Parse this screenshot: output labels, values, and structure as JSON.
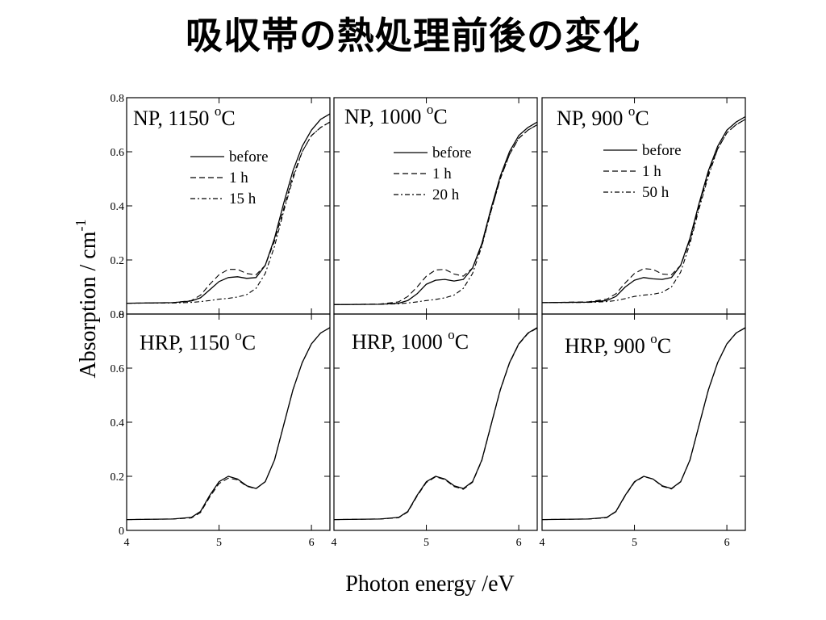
{
  "slide": {
    "title": "吸収帯の熱処理前後の変化"
  },
  "chart_data": {
    "type": "line",
    "xlabel": "Photon energy /eV",
    "ylabel": "Absorption / cm",
    "ylabel_sup": "-1",
    "xlim": [
      4,
      6.2
    ],
    "ylim": [
      0,
      0.8
    ],
    "xticks": [
      "4",
      "5",
      "6"
    ],
    "yticks": [
      "0",
      "0.2",
      "0.4",
      "0.6",
      "0.8"
    ],
    "grid": false,
    "panels": [
      {
        "title": "NP,  1150",
        "title_sup": "o",
        "title_unit": "C",
        "series": [
          {
            "name": "before",
            "style": "solid",
            "x": [
              4.0,
              4.5,
              4.7,
              4.8,
              4.9,
              5.0,
              5.1,
              5.2,
              5.3,
              5.4,
              5.5,
              5.6,
              5.7,
              5.8,
              5.9,
              6.0,
              6.1,
              6.2
            ],
            "y": [
              0.04,
              0.042,
              0.048,
              0.06,
              0.09,
              0.12,
              0.135,
              0.138,
              0.132,
              0.135,
              0.18,
              0.28,
              0.41,
              0.53,
              0.62,
              0.68,
              0.72,
              0.74
            ]
          },
          {
            "name": "1  h",
            "style": "dashed",
            "x": [
              4.0,
              4.5,
              4.7,
              4.8,
              4.9,
              5.0,
              5.1,
              5.2,
              5.3,
              5.4,
              5.5,
              5.6,
              5.7,
              5.8,
              5.9,
              6.0,
              6.1,
              6.2
            ],
            "y": [
              0.04,
              0.042,
              0.05,
              0.07,
              0.11,
              0.145,
              0.165,
              0.165,
              0.15,
              0.145,
              0.18,
              0.27,
              0.39,
              0.51,
              0.6,
              0.66,
              0.69,
              0.71
            ]
          },
          {
            "name": "15 h",
            "style": "dashdot",
            "x": [
              4.0,
              4.5,
              4.7,
              4.8,
              4.9,
              5.0,
              5.1,
              5.2,
              5.3,
              5.4,
              5.5,
              5.6,
              5.7,
              5.8,
              5.9,
              6.0,
              6.1,
              6.2
            ],
            "y": [
              0.04,
              0.041,
              0.043,
              0.046,
              0.05,
              0.055,
              0.058,
              0.063,
              0.072,
              0.095,
              0.15,
              0.25,
              0.38,
              0.5,
              0.6,
              0.66,
              0.69,
              0.71
            ]
          }
        ]
      },
      {
        "title": "NP,  1000",
        "title_sup": "o",
        "title_unit": "C",
        "series": [
          {
            "name": "before",
            "style": "solid",
            "x": [
              4.0,
              4.5,
              4.7,
              4.8,
              4.9,
              5.0,
              5.1,
              5.2,
              5.3,
              5.4,
              5.5,
              5.6,
              5.7,
              5.8,
              5.9,
              6.0,
              6.1,
              6.2
            ],
            "y": [
              0.035,
              0.036,
              0.04,
              0.05,
              0.075,
              0.11,
              0.125,
              0.128,
              0.122,
              0.128,
              0.17,
              0.26,
              0.39,
              0.51,
              0.6,
              0.66,
              0.69,
              0.71
            ]
          },
          {
            "name": "1  h",
            "style": "dashed",
            "x": [
              4.0,
              4.5,
              4.7,
              4.8,
              4.9,
              5.0,
              5.1,
              5.2,
              5.3,
              5.4,
              5.5,
              5.6,
              5.7,
              5.8,
              5.9,
              6.0,
              6.1,
              6.2
            ],
            "y": [
              0.035,
              0.037,
              0.045,
              0.065,
              0.1,
              0.14,
              0.163,
              0.165,
              0.148,
              0.14,
              0.17,
              0.255,
              0.38,
              0.5,
              0.59,
              0.65,
              0.68,
              0.7
            ]
          },
          {
            "name": "20 h",
            "style": "dashdot",
            "x": [
              4.0,
              4.5,
              4.7,
              4.8,
              4.9,
              5.0,
              5.1,
              5.2,
              5.3,
              5.4,
              5.5,
              5.6,
              5.7,
              5.8,
              5.9,
              6.0,
              6.1,
              6.2
            ],
            "y": [
              0.035,
              0.036,
              0.038,
              0.041,
              0.045,
              0.05,
              0.054,
              0.06,
              0.07,
              0.095,
              0.15,
              0.25,
              0.38,
              0.5,
              0.59,
              0.65,
              0.68,
              0.7
            ]
          }
        ]
      },
      {
        "title": "NP,  900",
        "title_sup": "o",
        "title_unit": "C",
        "series": [
          {
            "name": "before",
            "style": "solid",
            "x": [
              4.0,
              4.5,
              4.7,
              4.8,
              4.9,
              5.0,
              5.1,
              5.2,
              5.3,
              5.4,
              5.5,
              5.6,
              5.7,
              5.8,
              5.9,
              6.0,
              6.1,
              6.2
            ],
            "y": [
              0.042,
              0.044,
              0.05,
              0.065,
              0.1,
              0.125,
              0.135,
              0.13,
              0.128,
              0.135,
              0.18,
              0.28,
              0.41,
              0.53,
              0.62,
              0.68,
              0.71,
              0.73
            ]
          },
          {
            "name": "1  h",
            "style": "dashed",
            "x": [
              4.0,
              4.5,
              4.7,
              4.8,
              4.9,
              5.0,
              5.1,
              5.2,
              5.3,
              5.4,
              5.5,
              5.6,
              5.7,
              5.8,
              5.9,
              6.0,
              6.1,
              6.2
            ],
            "y": [
              0.042,
              0.045,
              0.055,
              0.075,
              0.115,
              0.15,
              0.168,
              0.165,
              0.148,
              0.145,
              0.18,
              0.27,
              0.4,
              0.52,
              0.61,
              0.67,
              0.7,
              0.72
            ]
          },
          {
            "name": "50 h",
            "style": "dashdot",
            "x": [
              4.0,
              4.5,
              4.7,
              4.8,
              4.9,
              5.0,
              5.1,
              5.2,
              5.3,
              5.4,
              5.5,
              5.6,
              5.7,
              5.8,
              5.9,
              6.0,
              6.1,
              6.2
            ],
            "y": [
              0.042,
              0.043,
              0.046,
              0.05,
              0.057,
              0.065,
              0.07,
              0.073,
              0.08,
              0.1,
              0.155,
              0.26,
              0.39,
              0.51,
              0.61,
              0.67,
              0.7,
              0.72
            ]
          }
        ]
      },
      {
        "title": "HRP, 1150",
        "title_sup": "o",
        "title_unit": "C",
        "series": [
          {
            "style": "solid",
            "x": [
              4.0,
              4.5,
              4.7,
              4.8,
              4.9,
              5.0,
              5.1,
              5.2,
              5.3,
              5.4,
              5.5,
              5.6,
              5.7,
              5.8,
              5.9,
              6.0,
              6.1,
              6.2
            ],
            "y": [
              0.04,
              0.042,
              0.048,
              0.07,
              0.13,
              0.18,
              0.2,
              0.19,
              0.165,
              0.155,
              0.18,
              0.26,
              0.39,
              0.52,
              0.62,
              0.69,
              0.73,
              0.75
            ]
          },
          {
            "style": "dashed",
            "x": [
              4.0,
              4.5,
              4.7,
              4.8,
              4.9,
              5.0,
              5.1,
              5.2,
              5.3,
              5.4,
              5.5,
              5.6,
              5.7,
              5.8,
              5.9,
              6.0,
              6.1,
              6.2
            ],
            "y": [
              0.04,
              0.042,
              0.046,
              0.066,
              0.124,
              0.173,
              0.193,
              0.187,
              0.163,
              0.154,
              0.18,
              0.26,
              0.39,
              0.52,
              0.62,
              0.69,
              0.73,
              0.75
            ]
          }
        ]
      },
      {
        "title": "HRP, 1000",
        "title_sup": "o",
        "title_unit": "C",
        "series": [
          {
            "style": "solid",
            "x": [
              4.0,
              4.5,
              4.7,
              4.8,
              4.9,
              5.0,
              5.1,
              5.2,
              5.3,
              5.4,
              5.5,
              5.6,
              5.7,
              5.8,
              5.9,
              6.0,
              6.1,
              6.2
            ],
            "y": [
              0.04,
              0.042,
              0.048,
              0.07,
              0.13,
              0.18,
              0.2,
              0.19,
              0.165,
              0.155,
              0.18,
              0.26,
              0.39,
              0.52,
              0.62,
              0.69,
              0.73,
              0.75
            ]
          },
          {
            "style": "dashed",
            "x": [
              4.0,
              4.5,
              4.7,
              4.8,
              4.9,
              5.0,
              5.1,
              5.2,
              5.3,
              5.4,
              5.5,
              5.6,
              5.7,
              5.8,
              5.9,
              6.0,
              6.1,
              6.2
            ],
            "y": [
              0.04,
              0.042,
              0.047,
              0.068,
              0.127,
              0.177,
              0.198,
              0.188,
              0.162,
              0.152,
              0.178,
              0.258,
              0.388,
              0.518,
              0.618,
              0.688,
              0.728,
              0.748
            ]
          }
        ]
      },
      {
        "title": "HRP, 900",
        "title_sup": "o",
        "title_unit": "C",
        "series": [
          {
            "style": "solid",
            "x": [
              4.0,
              4.5,
              4.7,
              4.8,
              4.9,
              5.0,
              5.1,
              5.2,
              5.3,
              5.4,
              5.5,
              5.6,
              5.7,
              5.8,
              5.9,
              6.0,
              6.1,
              6.2
            ],
            "y": [
              0.04,
              0.042,
              0.048,
              0.07,
              0.13,
              0.18,
              0.2,
              0.19,
              0.165,
              0.155,
              0.18,
              0.26,
              0.39,
              0.52,
              0.62,
              0.69,
              0.73,
              0.75
            ]
          },
          {
            "style": "dashed",
            "x": [
              4.0,
              4.5,
              4.7,
              4.8,
              4.9,
              5.0,
              5.1,
              5.2,
              5.3,
              5.4,
              5.5,
              5.6,
              5.7,
              5.8,
              5.9,
              6.0,
              6.1,
              6.2
            ],
            "y": [
              0.04,
              0.042,
              0.047,
              0.069,
              0.128,
              0.178,
              0.199,
              0.19,
              0.163,
              0.153,
              0.179,
              0.259,
              0.389,
              0.519,
              0.619,
              0.689,
              0.729,
              0.749
            ]
          }
        ]
      }
    ]
  }
}
